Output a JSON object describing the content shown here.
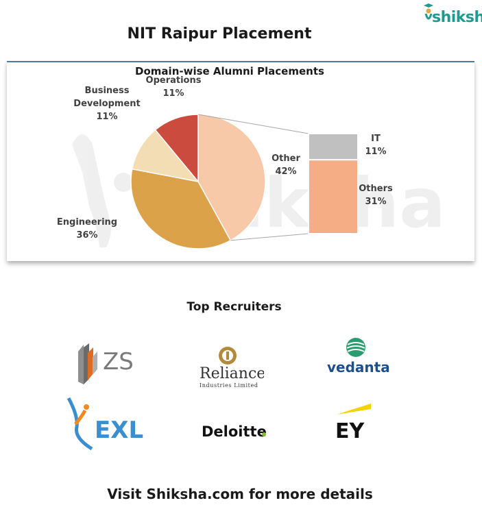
{
  "brand": {
    "name": "shiksha"
  },
  "page": {
    "title": "NIT Raipur Placement"
  },
  "watermark": "shiksha",
  "chart_data": {
    "type": "pie",
    "title": "Domain-wise Alumni Placements",
    "slices": [
      {
        "label": "Other",
        "value": 42,
        "value_label": "42%",
        "color": "#f7c9a9"
      },
      {
        "label": "Engineering",
        "value": 36,
        "value_label": "36%",
        "color": "#dba24a"
      },
      {
        "label": "Business Development",
        "value": 11,
        "value_label": "11%",
        "color": "#f3ddb4"
      },
      {
        "label": "Operations",
        "value": 11,
        "value_label": "11%",
        "color": "#cc4b3f"
      }
    ],
    "breakdown_of": "Other",
    "breakdown": [
      {
        "label": "IT",
        "value": 11,
        "value_label": "11%",
        "color": "#c0c0c0"
      },
      {
        "label": "Others",
        "value": 31,
        "value_label": "31%",
        "color": "#f5ad86"
      }
    ]
  },
  "recruiters": {
    "title": "Top Recruiters",
    "logos": [
      {
        "name": "ZS",
        "text": "ZS"
      },
      {
        "name": "Reliance",
        "text": "Reliance",
        "subtext": "Industries Limited"
      },
      {
        "name": "Vedanta",
        "text": "vedanta"
      },
      {
        "name": "EXL",
        "text": "EXL"
      },
      {
        "name": "Deloitte",
        "text": "Deloitte"
      },
      {
        "name": "EY",
        "text": "EY"
      }
    ]
  },
  "footer": {
    "text": "Visit Shiksha.com for more details"
  }
}
